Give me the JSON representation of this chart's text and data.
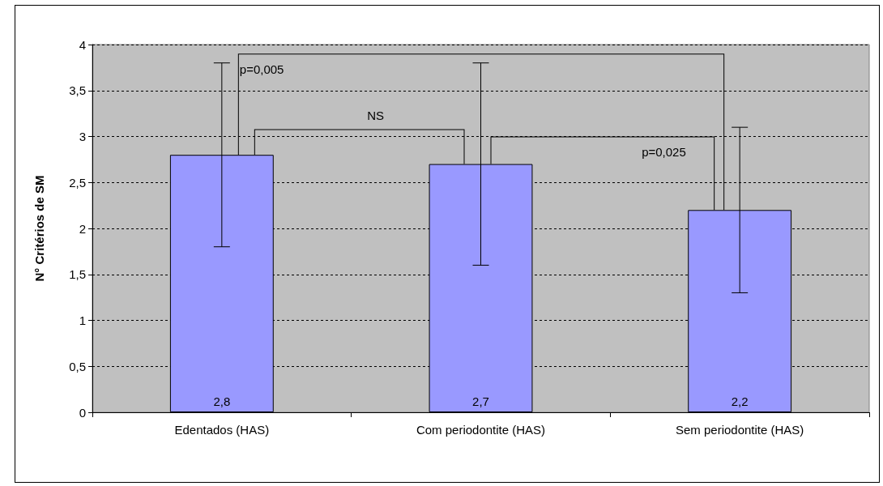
{
  "chart_data": {
    "type": "bar",
    "ylabel": "N° Critérios de SM",
    "categories": [
      "Edentados (HAS)",
      "Com periodontite (HAS)",
      "Sem periodontite (HAS)"
    ],
    "values": [
      2.8,
      2.7,
      2.2
    ],
    "color": "#9999ff",
    "errors": [
      1.0,
      1.1,
      0.9
    ],
    "value_labels": [
      "2,8",
      "2,7",
      "2,2"
    ],
    "ylim": [
      0,
      4
    ],
    "yticks": [
      0,
      {
        "value": 0.5,
        "label": "0,5"
      },
      1,
      {
        "value": 1.5,
        "label": "1,5"
      },
      2,
      {
        "value": 2.5,
        "label": "2,5"
      },
      3,
      {
        "value": 3.5,
        "label": "3,5"
      },
      4
    ],
    "grid": "y",
    "annotations": [
      "p=0,005",
      "NS",
      "p=0,025"
    ]
  }
}
